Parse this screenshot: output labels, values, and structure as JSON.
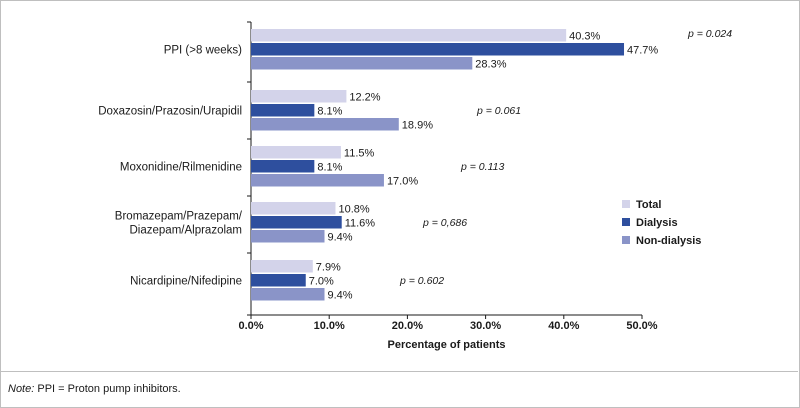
{
  "chart_data": {
    "type": "bar",
    "orientation": "horizontal",
    "categories": [
      [
        "PPI (>8 weeks)"
      ],
      [
        "Doxazosin/Prazosin/Urapidil"
      ],
      [
        "Moxonidine/Rilmenidine"
      ],
      [
        "Bromazepam/Prazepam/",
        "Diazepam/Alprazolam"
      ],
      [
        "Nicardipine/Nifedipine"
      ]
    ],
    "series": [
      {
        "name": "Total",
        "color": "#d3d3ea",
        "values": [
          40.3,
          12.2,
          11.5,
          10.8,
          7.9
        ],
        "labels": [
          "40.3%",
          "12.2%",
          "11.5%",
          "10.8%",
          "7.9%"
        ]
      },
      {
        "name": "Dialysis",
        "color": "#2e4f9e",
        "values": [
          47.7,
          8.1,
          8.1,
          11.6,
          7.0
        ],
        "labels": [
          "47.7%",
          "8.1%",
          "8.1%",
          "11.6%",
          "7.0%"
        ]
      },
      {
        "name": "Non-dialysis",
        "color": "#8a94c8",
        "values": [
          28.3,
          18.9,
          17.0,
          9.4,
          9.4
        ],
        "labels": [
          "28.3%",
          "18.9%",
          "17.0%",
          "9.4%",
          "9.4%"
        ]
      }
    ],
    "p_values": [
      "p = 0.024",
      "p = 0.061",
      "p = 0.113",
      "p = 0,686",
      "p = 0.602"
    ],
    "xlabel": "Percentage of patients",
    "xlim": [
      0,
      50
    ],
    "xticks": [
      0,
      10,
      20,
      30,
      40,
      50
    ],
    "xtick_labels": [
      "0.0%",
      "10.0%",
      "20.0%",
      "30.0%",
      "40.0%",
      "50.0%"
    ],
    "legend_position": "right",
    "grid": false
  },
  "note": {
    "prefix": "Note:",
    "text": " PPI = Proton pump inhibitors."
  }
}
